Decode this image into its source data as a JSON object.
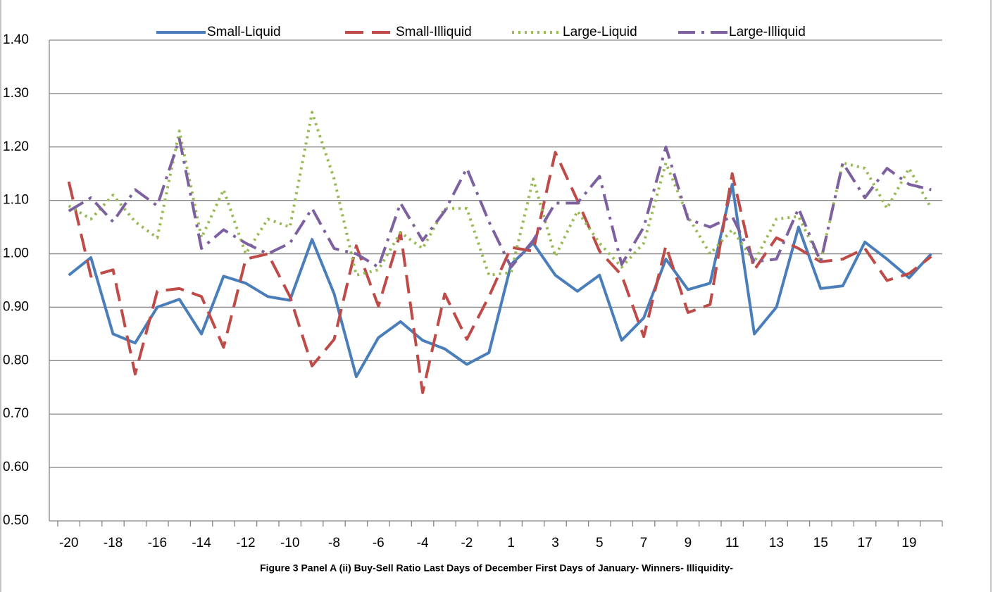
{
  "chart_data": {
    "type": "line",
    "title": "Figure 3 Panel A (ii)  Buy-Sell Ratio Last Days of December First Days of January- Winners- Illiquidity-",
    "categories": [
      "-20",
      null,
      "-18",
      null,
      "-16",
      null,
      "-14",
      null,
      "-12",
      null,
      "-10",
      null,
      "-8",
      null,
      "-6",
      null,
      "-4",
      null,
      "-2",
      null,
      "1",
      null,
      "3",
      null,
      "5",
      null,
      "7",
      null,
      "9",
      null,
      "11",
      null,
      "13",
      null,
      "15",
      null,
      "17",
      null,
      "19",
      null
    ],
    "series": [
      {
        "name": "Small-Liquid",
        "color": "#4a7ebb",
        "line_style": "solid",
        "values": [
          0.96,
          0.993,
          0.85,
          0.833,
          0.9,
          0.915,
          0.85,
          0.958,
          0.945,
          0.92,
          0.913,
          1.027,
          0.925,
          0.77,
          0.843,
          0.873,
          0.838,
          0.822,
          0.793,
          0.815,
          0.98,
          1.02,
          0.96,
          0.93,
          0.96,
          0.838,
          0.88,
          0.99,
          0.933,
          0.945,
          1.13,
          0.85,
          0.9,
          1.05,
          0.935,
          0.94,
          1.022,
          0.99,
          0.955,
          1.0
        ]
      },
      {
        "name": "Small-Illiquid",
        "color": "#be4b48",
        "line_style": "dashed",
        "values": [
          1.135,
          0.958,
          0.97,
          0.775,
          0.93,
          0.935,
          0.92,
          0.825,
          0.99,
          1.0,
          0.92,
          0.79,
          0.84,
          1.015,
          0.902,
          1.04,
          0.74,
          0.925,
          0.84,
          0.92,
          1.012,
          1.005,
          1.19,
          1.1,
          1.005,
          0.96,
          0.845,
          1.015,
          0.89,
          0.905,
          1.15,
          0.97,
          1.03,
          1.01,
          0.985,
          0.99,
          1.01,
          0.95,
          0.963,
          0.995
        ]
      },
      {
        "name": "Large-Liquid",
        "color": "#98b954",
        "line_style": "dotted",
        "values": [
          1.09,
          1.065,
          1.11,
          1.06,
          1.03,
          1.23,
          1.03,
          1.12,
          1.0,
          1.065,
          1.05,
          1.265,
          1.14,
          0.96,
          0.97,
          1.04,
          1.01,
          1.085,
          1.085,
          0.96,
          0.965,
          1.14,
          0.995,
          1.08,
          1.02,
          0.975,
          1.02,
          1.17,
          1.07,
          1.0,
          1.045,
          0.985,
          1.065,
          1.07,
          0.985,
          1.17,
          1.16,
          1.085,
          1.16,
          1.085
        ]
      },
      {
        "name": "Large-Illiquid",
        "color": "#7d60a0",
        "line_style": "dashdot",
        "values": [
          1.08,
          1.105,
          1.06,
          1.12,
          1.09,
          1.215,
          1.01,
          1.045,
          1.02,
          1.0,
          1.02,
          1.085,
          1.01,
          1.0,
          0.975,
          1.095,
          1.025,
          1.08,
          1.16,
          1.06,
          0.975,
          1.025,
          1.095,
          1.095,
          1.145,
          0.98,
          1.05,
          1.2,
          1.065,
          1.05,
          1.07,
          0.985,
          0.99,
          1.085,
          0.985,
          1.17,
          1.105,
          1.16,
          1.13,
          1.12
        ]
      }
    ],
    "ylim": [
      0.5,
      1.4
    ],
    "yticks": [
      {
        "value": 0.5,
        "label": "0.50"
      },
      {
        "value": 0.6,
        "label": "0.60"
      },
      {
        "value": 0.7,
        "label": "0.70"
      },
      {
        "value": 0.8,
        "label": "0.80"
      },
      {
        "value": 0.9,
        "label": "0.90"
      },
      {
        "value": 1.0,
        "label": "1.00"
      },
      {
        "value": 1.1,
        "label": "1.10"
      },
      {
        "value": 1.2,
        "label": "1.20"
      },
      {
        "value": 1.3,
        "label": "1.30"
      },
      {
        "value": 1.4,
        "label": "1.40"
      }
    ],
    "grid": true,
    "legend": "top"
  }
}
